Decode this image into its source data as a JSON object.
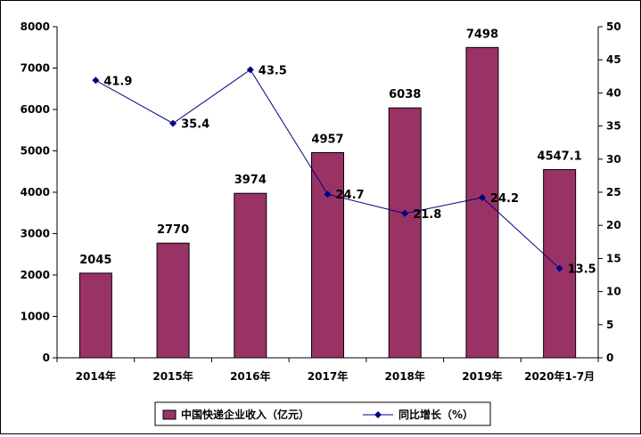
{
  "chart_data": {
    "type": "bar",
    "categories": [
      "2014年",
      "2015年",
      "2016年",
      "2017年",
      "2018年",
      "2019年",
      "2020年1-7月"
    ],
    "series": [
      {
        "name": "中国快递企业收入（亿元）",
        "type": "bar",
        "axis": "left",
        "values": [
          2045,
          2770,
          3974,
          4957,
          6038,
          7498,
          4547.1
        ],
        "labels": [
          "2045",
          "2770",
          "3974",
          "4957",
          "6038",
          "7498",
          "4547.1"
        ]
      },
      {
        "name": "同比增长（%）",
        "type": "line",
        "axis": "right",
        "values": [
          41.9,
          35.4,
          43.5,
          24.7,
          21.8,
          24.2,
          13.5
        ],
        "labels": [
          "41.9",
          "35.4",
          "43.5",
          "24.7",
          "21.8",
          "24.2",
          "13.5"
        ]
      }
    ],
    "y_left": {
      "min": 0,
      "max": 8000,
      "ticks": [
        0,
        1000,
        2000,
        3000,
        4000,
        5000,
        6000,
        7000,
        8000
      ]
    },
    "y_right": {
      "min": 0,
      "max": 50,
      "ticks": [
        0,
        5,
        10,
        15,
        20,
        25,
        30,
        35,
        40,
        45,
        50
      ]
    },
    "grid": false,
    "legend_position": "bottom",
    "colors": {
      "bar": "#993366",
      "line": "#000080",
      "axis": "#000000"
    }
  }
}
